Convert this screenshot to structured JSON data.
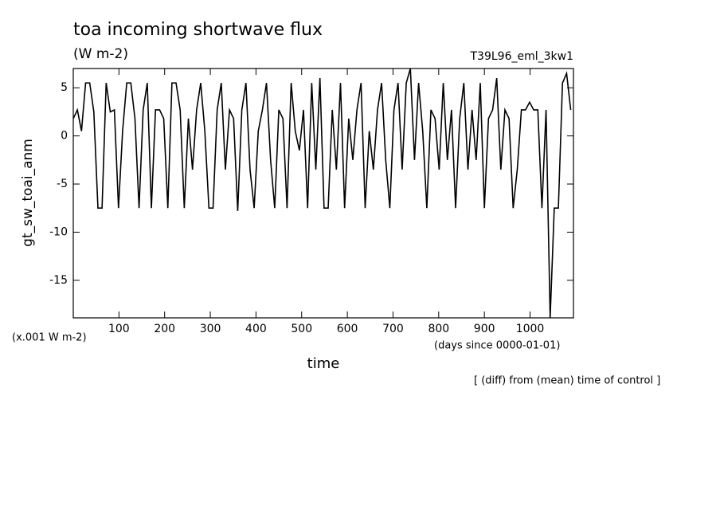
{
  "chart_data": {
    "type": "line",
    "title": "toa incoming shortwave flux",
    "subtitle": "(W m-2)",
    "run_label": "T39L96_eml_3kw1",
    "y_label": "gt_sw_toai_anm",
    "y_unit_label": "(x.001 W m-2)",
    "x_label": "time",
    "x_unit_label": "(days since 0000-01-01)",
    "annotation": "[ (diff) from (mean) time of control ]",
    "color": "#000000",
    "xlim": [
      0,
      1095
    ],
    "ylim": [
      -18.9,
      7
    ],
    "xticks": [
      100,
      200,
      300,
      400,
      500,
      600,
      700,
      800,
      900,
      1000
    ],
    "yticks": [
      5,
      0,
      -5,
      -10,
      -15
    ],
    "x": [
      0,
      9,
      18,
      27,
      36,
      45,
      54,
      63,
      72,
      81,
      90,
      99,
      108,
      117,
      126,
      135,
      144,
      153,
      162,
      171,
      180,
      189,
      198,
      207,
      216,
      225,
      234,
      243,
      252,
      261,
      270,
      279,
      288,
      297,
      306,
      315,
      324,
      333,
      342,
      351,
      360,
      369,
      378,
      387,
      396,
      405,
      414,
      423,
      432,
      441,
      450,
      459,
      468,
      477,
      486,
      495,
      504,
      513,
      522,
      531,
      540,
      549,
      558,
      567,
      576,
      585,
      594,
      603,
      612,
      621,
      630,
      639,
      648,
      657,
      666,
      675,
      684,
      693,
      702,
      711,
      720,
      729,
      738,
      747,
      756,
      765,
      774,
      783,
      792,
      801,
      810,
      819,
      828,
      837,
      846,
      855,
      864,
      873,
      882,
      891,
      900,
      909,
      918,
      927,
      936,
      945,
      954,
      963,
      972,
      981,
      990,
      999,
      1008,
      1017,
      1026,
      1035,
      1044,
      1053,
      1062,
      1071,
      1080,
      1089
    ],
    "values": [
      1.8,
      2.7,
      0.5,
      5.5,
      5.5,
      2.5,
      -7.5,
      -7.5,
      5.5,
      2.5,
      2.7,
      -7.5,
      0.5,
      5.5,
      5.5,
      1.8,
      -7.5,
      2.7,
      5.5,
      -7.5,
      2.7,
      2.7,
      1.8,
      -7.5,
      5.5,
      5.5,
      2.7,
      -7.5,
      1.8,
      -3.5,
      2.7,
      5.5,
      0.5,
      -7.5,
      -7.5,
      2.7,
      5.5,
      -3.5,
      2.7,
      1.8,
      -7.8,
      2.7,
      5.5,
      -3.5,
      -7.5,
      0.5,
      2.7,
      5.5,
      -2.5,
      -7.5,
      2.7,
      1.8,
      -7.5,
      5.5,
      0.5,
      -1.5,
      2.7,
      -7.5,
      5.5,
      -3.5,
      6.0,
      -7.5,
      -7.5,
      2.7,
      -3.5,
      5.5,
      -7.5,
      1.8,
      -2.5,
      2.7,
      5.5,
      -7.5,
      0.5,
      -3.5,
      2.7,
      5.5,
      -2.5,
      -7.5,
      2.7,
      5.5,
      -3.5,
      5.5,
      7.0,
      -2.5,
      5.5,
      0.5,
      -7.5,
      2.7,
      1.8,
      -3.5,
      5.5,
      -2.5,
      2.7,
      -7.5,
      1.8,
      5.5,
      -3.5,
      2.7,
      -2.5,
      5.5,
      -7.5,
      1.8,
      2.7,
      6.0,
      -3.5,
      2.7,
      1.8,
      -7.5,
      -3.5,
      2.7,
      2.7,
      3.5,
      2.7,
      2.7,
      -7.5,
      2.7,
      -18.9,
      -7.5,
      -7.5,
      5.5,
      6.5,
      2.7
    ]
  }
}
